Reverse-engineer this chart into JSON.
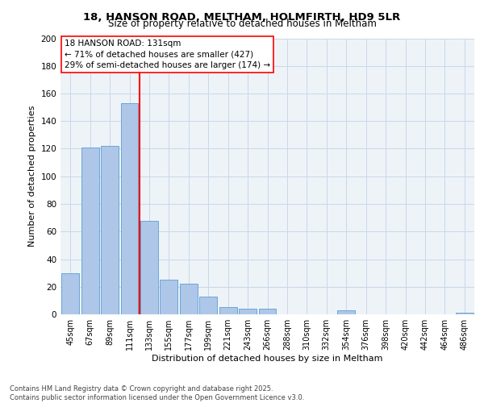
{
  "title_line1": "18, HANSON ROAD, MELTHAM, HOLMFIRTH, HD9 5LR",
  "title_line2": "Size of property relative to detached houses in Meltham",
  "xlabel": "Distribution of detached houses by size in Meltham",
  "ylabel": "Number of detached properties",
  "categories": [
    "45sqm",
    "67sqm",
    "89sqm",
    "111sqm",
    "133sqm",
    "155sqm",
    "177sqm",
    "199sqm",
    "221sqm",
    "243sqm",
    "266sqm",
    "288sqm",
    "310sqm",
    "332sqm",
    "354sqm",
    "376sqm",
    "398sqm",
    "420sqm",
    "442sqm",
    "464sqm",
    "486sqm"
  ],
  "values": [
    30,
    121,
    122,
    153,
    68,
    25,
    22,
    13,
    5,
    4,
    4,
    0,
    0,
    0,
    3,
    0,
    0,
    0,
    0,
    0,
    1
  ],
  "bar_color": "#aec6e8",
  "bar_edge_color": "#5a9fd4",
  "grid_color": "#c8d8e8",
  "bg_color": "#eef3f8",
  "vline_color": "red",
  "annotation_text": "18 HANSON ROAD: 131sqm\n← 71% of detached houses are smaller (427)\n29% of semi-detached houses are larger (174) →",
  "box_color": "white",
  "box_edge_color": "red",
  "footer_line1": "Contains HM Land Registry data © Crown copyright and database right 2025.",
  "footer_line2": "Contains public sector information licensed under the Open Government Licence v3.0.",
  "ylim": [
    0,
    200
  ],
  "yticks": [
    0,
    20,
    40,
    60,
    80,
    100,
    120,
    140,
    160,
    180,
    200
  ],
  "vline_index": 3.5
}
